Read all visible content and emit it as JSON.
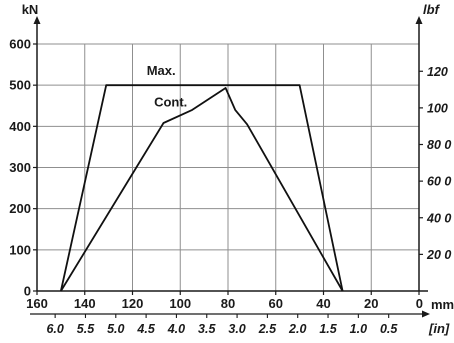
{
  "chart_data": {
    "type": "line",
    "x_axis": {
      "unit": "mm",
      "range": [
        160,
        0
      ],
      "reversed": true,
      "ticks": [
        160,
        140,
        120,
        100,
        80,
        60,
        40,
        20,
        0
      ]
    },
    "x_axis_secondary": {
      "unit": "[in]",
      "ticks": [
        6.0,
        5.5,
        5.0,
        4.5,
        4.0,
        3.5,
        3.0,
        2.5,
        2.0,
        1.5,
        1.0,
        0.5
      ],
      "tick_labels": [
        "6.0",
        "5.5",
        "5.0",
        "4.5",
        "4.0",
        "3.5",
        "3.0",
        "2.5",
        "2.0",
        "1.5",
        "1.0",
        "0.5"
      ]
    },
    "y_axis": {
      "unit": "kN",
      "range": [
        0,
        600
      ],
      "ticks": [
        0,
        100,
        200,
        300,
        400,
        500,
        600
      ]
    },
    "y_axis_secondary": {
      "unit": "lbf",
      "ticks": [
        20,
        40,
        60,
        80,
        100,
        120
      ],
      "tick_labels": [
        "20 0",
        "40 0",
        "60 0",
        "80 0",
        "100",
        "120"
      ]
    },
    "grid": true,
    "series": [
      {
        "name": "Max.",
        "points": [
          [
            150,
            0
          ],
          [
            131,
            500
          ],
          [
            50,
            500
          ],
          [
            32,
            0
          ]
        ]
      },
      {
        "name": "Cont.",
        "points": [
          [
            150,
            0
          ],
          [
            107,
            408
          ],
          [
            95,
            440
          ],
          [
            81,
            493
          ],
          [
            77,
            440
          ],
          [
            72,
            405
          ],
          [
            32,
            0
          ]
        ]
      }
    ]
  }
}
